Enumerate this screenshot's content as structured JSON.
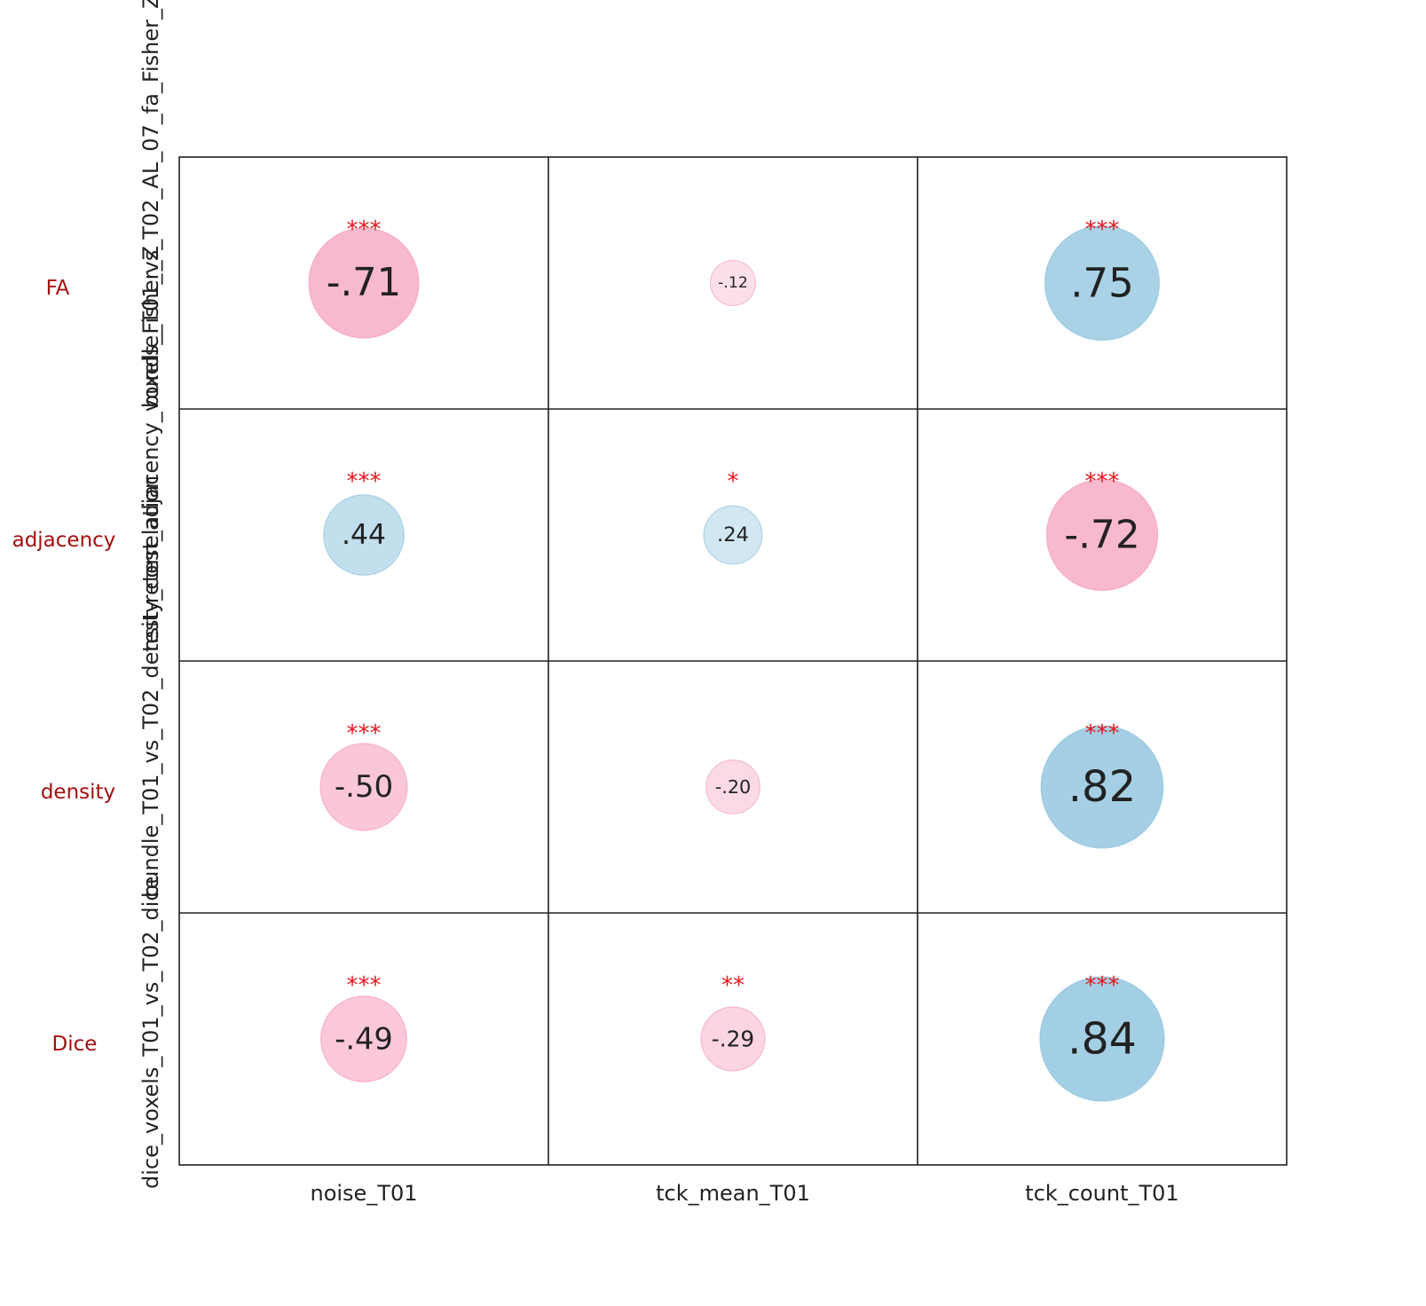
{
  "chart_data": {
    "type": "bubble-correlation-matrix",
    "columns": [
      "noise_T01",
      "tck_mean_T01",
      "tck_count_T01"
    ],
    "rows": [
      {
        "label": "FA",
        "rotated_label": "bundle_T01_vs_T02_AL_07_fa_Fisher_Z"
      },
      {
        "label": "adjacency",
        "rotated_label": "test-retest_adjacency_voxels_Fisher_Z"
      },
      {
        "label": "density",
        "rotated_label": "bundle_T01_vs_T02_density_correlation"
      },
      {
        "label": "Dice",
        "rotated_label": "dice_voxels_T01_vs_T02_dice"
      }
    ],
    "values": [
      [
        -0.71,
        -0.12,
        0.75
      ],
      [
        0.44,
        0.24,
        -0.72
      ],
      [
        -0.5,
        -0.2,
        0.82
      ],
      [
        -0.49,
        -0.29,
        0.84
      ]
    ],
    "value_labels": [
      [
        "-.71",
        "-.12",
        ".75"
      ],
      [
        ".44",
        ".24",
        "-.72"
      ],
      [
        "-.50",
        "-.20",
        ".82"
      ],
      [
        "-.49",
        "-.29",
        ".84"
      ]
    ],
    "significance": [
      [
        "***",
        "",
        "***"
      ],
      [
        "***",
        "*",
        "***"
      ],
      [
        "***",
        "",
        "***"
      ],
      [
        "***",
        "**",
        "***"
      ]
    ],
    "colors": {
      "positive": "#7fbcd9",
      "negative": "#f593b0",
      "significance": "#e8141c",
      "row_label": "#a50f0f"
    }
  }
}
